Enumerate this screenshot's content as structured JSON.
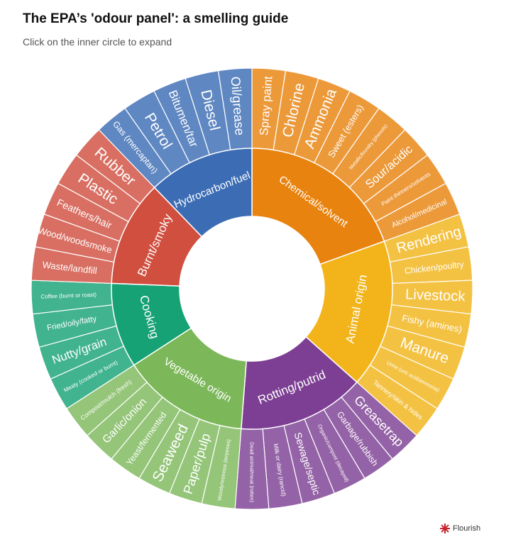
{
  "header": {
    "title": "The EPA’s 'odour panel': a smelling guide",
    "subtitle": "Click on the inner circle to expand"
  },
  "credit": {
    "label": "Flourish",
    "icon": "flourish-logo-icon"
  },
  "chart_data": {
    "type": "sunburst",
    "categories": [
      {
        "name": "Chemical/solvent",
        "color": "#e8830f",
        "children": [
          "Spray paint",
          "Chlorine",
          "Ammonia",
          "Sweet (esters)",
          "Metallic/foundry (phenols)",
          "Sour/acidic",
          "Paint thinners/solvents",
          "Alcohol/medicinal"
        ]
      },
      {
        "name": "Animal origin",
        "color": "#f2b41a",
        "children": [
          "Rendering",
          "Chicken/poultry",
          "Livestock",
          "Fishy (amines)",
          "Manure",
          "Urine (uric acid/ammonia)",
          "Tannery/skin & hides"
        ]
      },
      {
        "name": "Rotting/putrid",
        "color": "#7d3f93",
        "children": [
          "Greasetrap",
          "Garbage/rubbish",
          "Organic/compost (decayed)",
          "Sewage/septic",
          "Milk or dairy (rancid)",
          "Dead animal/meat (rotten)"
        ]
      },
      {
        "name": "Vegetable origin",
        "color": "#7cb85a",
        "children": [
          "Woody/resinous (terpenes)",
          "Paper/pulp",
          "Seaweed",
          "Yeast/fermented",
          "Garlic/onion",
          "Compost/mulch (fresh)"
        ]
      },
      {
        "name": "Cooking",
        "color": "#17a275",
        "children": [
          "Meaty (cooked or burnt)",
          "Nutty/grain",
          "Fried/oily/fatty",
          "Coffee (burnt or roast)"
        ]
      },
      {
        "name": "Burnt/smoky",
        "color": "#d04f3f",
        "children": [
          "Waste/landfill",
          "Wood/woodsmoke",
          "Feathers/hair",
          "Plastic",
          "Rubber"
        ]
      },
      {
        "name": "Hydrocarbon/fuel",
        "color": "#3c6db4",
        "children": [
          "Gas (mercaptan)",
          "Petrol",
          "Bitumen/tar",
          "Diesel",
          "Oil/grease"
        ]
      }
    ]
  }
}
